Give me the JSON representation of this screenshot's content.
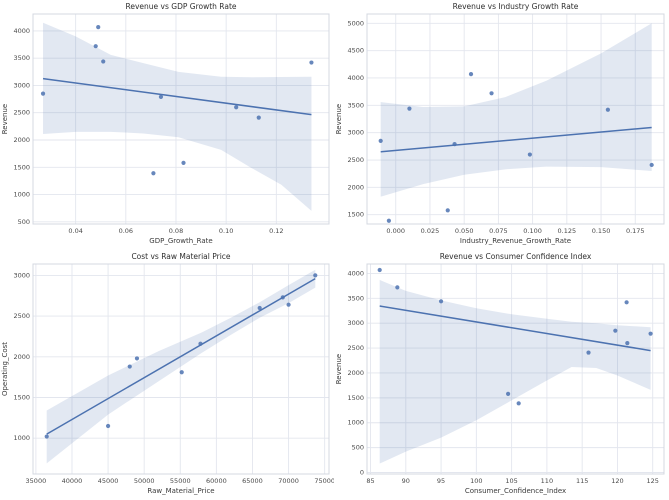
{
  "figure": {
    "background": "#ffffff",
    "layout": "2x2-grid"
  },
  "style": {
    "accent_color": "#4c72b0",
    "point_color": "#4c72b0",
    "point_opacity": 0.85,
    "band_color": "#4c72b0",
    "band_opacity": 0.16,
    "grid_color": "#e3e6ee",
    "spine_color": "#d4d8e1",
    "title_color": "#2e2e2e",
    "label_color": "#3a3a3a",
    "tick_color": "#4a4a4a"
  },
  "chart_data": [
    {
      "type": "scatter",
      "title": "Revenue vs GDP Growth Rate",
      "xlabel": "GDP_Growth_Rate",
      "ylabel": "Revenue",
      "xlim": [
        0.023,
        0.141
      ],
      "ylim": [
        460,
        4310
      ],
      "xticks": [
        0.04,
        0.06,
        0.08,
        0.1,
        0.12
      ],
      "xtick_labels": [
        "0.04",
        "0.06",
        "0.08",
        "0.10",
        "0.12"
      ],
      "yticks": [
        500,
        1000,
        1500,
        2000,
        2500,
        3000,
        3500,
        4000
      ],
      "ytick_labels": [
        "500",
        "1000",
        "1500",
        "2000",
        "2500",
        "3000",
        "3500",
        "4000"
      ],
      "x": [
        0.027,
        0.049,
        0.048,
        0.051,
        0.074,
        0.071,
        0.083,
        0.104,
        0.113,
        0.134
      ],
      "y": [
        2850,
        4070,
        3720,
        3440,
        2790,
        1390,
        1580,
        2600,
        2410,
        3420
      ],
      "regression_line": {
        "x": [
          0.027,
          0.134
        ],
        "y": [
          3125,
          2465
        ]
      },
      "confidence_band": {
        "x": [
          0.027,
          0.04,
          0.054,
          0.067,
          0.081,
          0.098,
          0.11,
          0.122,
          0.134
        ],
        "upper": [
          4150,
          3900,
          3560,
          3410,
          3250,
          3160,
          3150,
          3155,
          3160
        ],
        "lower": [
          2110,
          2150,
          2150,
          2120,
          2050,
          1820,
          1490,
          1180,
          700
        ]
      }
    },
    {
      "type": "scatter",
      "title": "Revenue vs Industry Growth Rate",
      "xlabel": "Industry_Revenue_Growth_Rate",
      "ylabel": "Revenue",
      "xlim": [
        -0.021,
        0.196
      ],
      "ylim": [
        1330,
        5170
      ],
      "xticks": [
        0.0,
        0.025,
        0.05,
        0.075,
        0.1,
        0.125,
        0.15,
        0.175
      ],
      "xtick_labels": [
        "0.000",
        "0.025",
        "0.050",
        "0.075",
        "0.100",
        "0.125",
        "0.150",
        "0.175"
      ],
      "yticks": [
        1500,
        2000,
        2500,
        3000,
        3500,
        4000,
        4500,
        5000
      ],
      "ytick_labels": [
        "1500",
        "2000",
        "2500",
        "3000",
        "3500",
        "4000",
        "4500",
        "5000"
      ],
      "x": [
        -0.011,
        -0.005,
        0.01,
        0.038,
        0.043,
        0.055,
        0.07,
        0.098,
        0.155,
        0.187
      ],
      "y": [
        2850,
        1390,
        3440,
        1580,
        2790,
        4070,
        3720,
        2600,
        3420,
        2410
      ],
      "regression_line": {
        "x": [
          -0.011,
          0.187
        ],
        "y": [
          2650,
          3095
        ]
      },
      "confidence_band": {
        "x": [
          -0.011,
          0.02,
          0.05,
          0.08,
          0.11,
          0.15,
          0.187
        ],
        "upper": [
          3560,
          3470,
          3480,
          3650,
          3950,
          4450,
          5000
        ],
        "lower": [
          1830,
          2060,
          2230,
          2330,
          2380,
          2370,
          2300
        ]
      }
    },
    {
      "type": "scatter",
      "title": "Cost vs Raw Material Price",
      "xlabel": "Raw_Material_Price",
      "ylabel": "Operating_Cost",
      "xlim": [
        34600,
        75600
      ],
      "ylim": [
        560,
        3140
      ],
      "xticks": [
        35000,
        40000,
        45000,
        50000,
        55000,
        60000,
        65000,
        70000,
        75000
      ],
      "xtick_labels": [
        "35000",
        "40000",
        "45000",
        "50000",
        "55000",
        "60000",
        "65000",
        "70000",
        "75000"
      ],
      "yticks": [
        1000,
        1500,
        2000,
        2500,
        3000
      ],
      "ytick_labels": [
        "1000",
        "1500",
        "2000",
        "2500",
        "3000"
      ],
      "x": [
        36500,
        45000,
        48000,
        49000,
        55200,
        57800,
        66000,
        69200,
        70000,
        73700
      ],
      "y": [
        1020,
        1150,
        1880,
        1980,
        1810,
        2160,
        2600,
        2730,
        2640,
        3000
      ],
      "regression_line": {
        "x": [
          36500,
          73700
        ],
        "y": [
          1050,
          2960
        ]
      },
      "confidence_band": {
        "x": [
          36500,
          45000,
          52000,
          58000,
          62000,
          66000,
          70000,
          73700
        ],
        "upper": [
          1340,
          1770,
          2070,
          2300,
          2480,
          2670,
          2880,
          3070
        ],
        "lower": [
          690,
          1290,
          1700,
          2050,
          2270,
          2480,
          2660,
          2850
        ]
      }
    },
    {
      "type": "scatter",
      "title": "Revenue vs Consumer Confidence Index",
      "xlabel": "Consumer_Confidence_Index",
      "ylabel": "Revenue",
      "xlim": [
        84.5,
        126.6
      ],
      "ylim": [
        -30,
        4190
      ],
      "xticks": [
        85,
        90,
        95,
        100,
        105,
        110,
        115,
        120,
        125
      ],
      "xtick_labels": [
        "85",
        "90",
        "95",
        "100",
        "105",
        "110",
        "115",
        "120",
        "125"
      ],
      "yticks": [
        0,
        500,
        1000,
        1500,
        2000,
        2500,
        3000,
        3500,
        4000
      ],
      "ytick_labels": [
        "0",
        "500",
        "1000",
        "1500",
        "2000",
        "2500",
        "3000",
        "3500",
        "4000"
      ],
      "x": [
        86.3,
        88.8,
        95.0,
        104.5,
        106.0,
        115.9,
        119.7,
        121.3,
        121.4,
        124.7
      ],
      "y": [
        4070,
        3720,
        3440,
        1580,
        1390,
        2410,
        2850,
        3420,
        2600,
        2790
      ],
      "regression_line": {
        "x": [
          86.3,
          124.7
        ],
        "y": [
          3345,
          2450
        ]
      },
      "confidence_band": {
        "x": [
          86.3,
          90,
          95,
          100,
          105,
          110,
          113.5,
          117,
          120,
          124.7
        ],
        "upper": [
          3870,
          3650,
          3460,
          3300,
          3180,
          3090,
          3030,
          3000,
          2960,
          2920
        ],
        "lower": [
          180,
          420,
          700,
          1050,
          1450,
          1850,
          2120,
          2100,
          1950,
          1660
        ]
      }
    }
  ]
}
